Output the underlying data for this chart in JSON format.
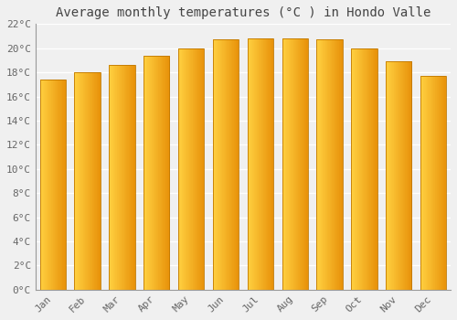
{
  "title": "Average monthly temperatures (°C ) in Hondo Valle",
  "months": [
    "Jan",
    "Feb",
    "Mar",
    "Apr",
    "May",
    "Jun",
    "Jul",
    "Aug",
    "Sep",
    "Oct",
    "Nov",
    "Dec"
  ],
  "values": [
    17.4,
    18.0,
    18.6,
    19.4,
    20.0,
    20.7,
    20.8,
    20.8,
    20.7,
    20.0,
    18.9,
    17.7
  ],
  "bar_color_left": "#FFD040",
  "bar_color_right": "#E8920A",
  "bar_edge_color": "#C07800",
  "ylim": [
    0,
    22
  ],
  "yticks": [
    0,
    2,
    4,
    6,
    8,
    10,
    12,
    14,
    16,
    18,
    20,
    22
  ],
  "ytick_labels": [
    "0°C",
    "2°C",
    "4°C",
    "6°C",
    "8°C",
    "10°C",
    "12°C",
    "14°C",
    "16°C",
    "18°C",
    "20°C",
    "22°C"
  ],
  "background_color": "#f0f0f0",
  "grid_color": "#ffffff",
  "title_fontsize": 10,
  "tick_fontsize": 8,
  "title_color": "#444444",
  "tick_color": "#666666",
  "bar_width": 0.75
}
